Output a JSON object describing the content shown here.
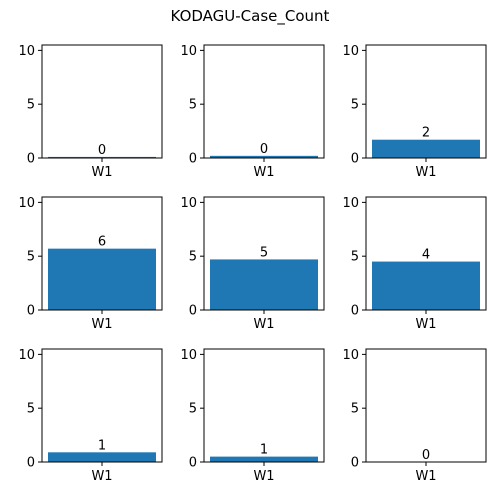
{
  "chart_data": {
    "title": "KODAGU-Case_Count",
    "type": "bar",
    "ylim": [
      0,
      10.5
    ],
    "yticks": [
      "0",
      "5",
      "10"
    ],
    "bar_color": "#1f77b4",
    "panels": [
      {
        "categories": [
          "W1"
        ],
        "values": [
          0.1
        ],
        "data_labels": [
          "0"
        ]
      },
      {
        "categories": [
          "W1"
        ],
        "values": [
          0.2
        ],
        "data_labels": [
          "0"
        ]
      },
      {
        "categories": [
          "W1"
        ],
        "values": [
          1.7
        ],
        "data_labels": [
          "2"
        ]
      },
      {
        "categories": [
          "W1"
        ],
        "values": [
          5.7
        ],
        "data_labels": [
          "6"
        ]
      },
      {
        "categories": [
          "W1"
        ],
        "values": [
          4.7
        ],
        "data_labels": [
          "5"
        ]
      },
      {
        "categories": [
          "W1"
        ],
        "values": [
          4.5
        ],
        "data_labels": [
          "4"
        ]
      },
      {
        "categories": [
          "W1"
        ],
        "values": [
          0.9
        ],
        "data_labels": [
          "1"
        ]
      },
      {
        "categories": [
          "W1"
        ],
        "values": [
          0.5
        ],
        "data_labels": [
          "1"
        ]
      },
      {
        "categories": [
          "W1"
        ],
        "values": [
          0.0
        ],
        "data_labels": [
          "0"
        ]
      }
    ]
  }
}
